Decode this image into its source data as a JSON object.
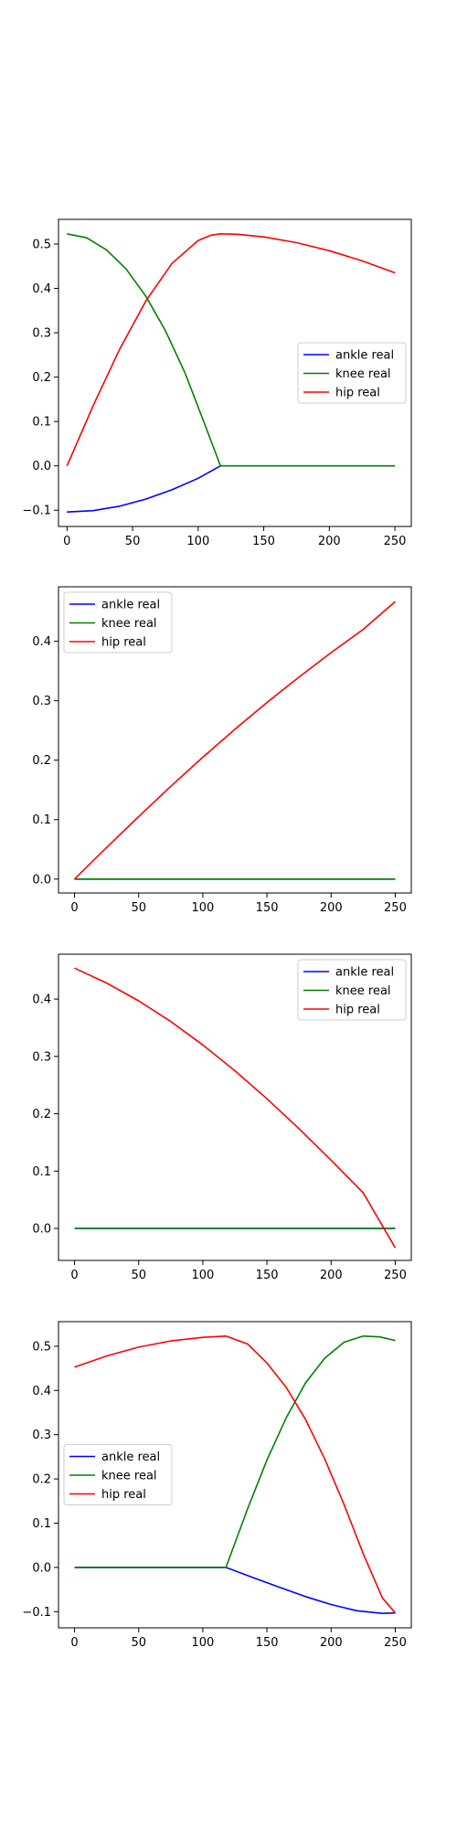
{
  "chart_data": [
    {
      "type": "line",
      "xlim": [
        -6.5,
        262.5
      ],
      "ylim": [
        -0.1366,
        0.5556
      ],
      "xticks": [
        0,
        50,
        100,
        150,
        200,
        250
      ],
      "yticks": [
        -0.1,
        0.0,
        0.1,
        0.2,
        0.3,
        0.4,
        0.5
      ],
      "ytick_labels": [
        "−0.1",
        "0.0",
        "0.1",
        "0.2",
        "0.3",
        "0.4",
        "0.5"
      ],
      "legend": "center-right",
      "series": [
        {
          "name": "ankle real",
          "color": "#0000ff",
          "x": [
            0,
            20,
            40,
            60,
            80,
            100,
            117
          ],
          "y": [
            -0.104,
            -0.101,
            -0.091,
            -0.075,
            -0.054,
            -0.028,
            0.0
          ]
        },
        {
          "name": "knee real",
          "color": "#008000",
          "x": [
            0,
            15,
            30,
            45,
            60,
            75,
            90,
            105,
            117,
            150,
            200,
            250
          ],
          "y": [
            0.523,
            0.514,
            0.487,
            0.444,
            0.383,
            0.305,
            0.209,
            0.094,
            0.0,
            0.0,
            0.0,
            0.0
          ]
        },
        {
          "name": "hip real",
          "color": "#ff0000",
          "x": [
            0,
            20,
            40,
            60,
            80,
            100,
            110,
            117,
            130,
            150,
            175,
            200,
            225,
            250
          ],
          "y": [
            0.0,
            0.136,
            0.262,
            0.371,
            0.456,
            0.508,
            0.52,
            0.523,
            0.522,
            0.516,
            0.503,
            0.485,
            0.462,
            0.435
          ]
        }
      ]
    },
    {
      "type": "line",
      "xlim": [
        -12.5,
        262.5
      ],
      "ylim": [
        -0.0234,
        0.4917
      ],
      "xticks": [
        0,
        50,
        100,
        150,
        200,
        250
      ],
      "yticks": [
        0.0,
        0.1,
        0.2,
        0.3,
        0.4
      ],
      "ytick_labels": [
        "0.0",
        "0.1",
        "0.2",
        "0.3",
        "0.4"
      ],
      "legend": "top-left",
      "series": [
        {
          "name": "ankle real",
          "color": "#0000ff",
          "x": [
            0,
            250
          ],
          "y": [
            0.0,
            0.0
          ]
        },
        {
          "name": "knee real",
          "color": "#008000",
          "x": [
            0,
            250
          ],
          "y": [
            0.0,
            0.0
          ]
        },
        {
          "name": "hip real",
          "color": "#ff0000",
          "x": [
            0,
            25,
            50,
            75,
            100,
            125,
            150,
            175,
            200,
            225,
            250
          ],
          "y": [
            0.0,
            0.053,
            0.105,
            0.156,
            0.205,
            0.252,
            0.297,
            0.34,
            0.381,
            0.42,
            0.467
          ]
        }
      ]
    },
    {
      "type": "line",
      "xlim": [
        -12.5,
        262.5
      ],
      "ylim": [
        -0.0558,
        0.4783
      ],
      "xticks": [
        0,
        50,
        100,
        150,
        200,
        250
      ],
      "yticks": [
        0.0,
        0.1,
        0.2,
        0.3,
        0.4
      ],
      "ytick_labels": [
        "0.0",
        "0.1",
        "0.2",
        "0.3",
        "0.4"
      ],
      "legend": "top-right",
      "series": [
        {
          "name": "ankle real",
          "color": "#0000ff",
          "x": [
            0,
            250
          ],
          "y": [
            0.0,
            0.0
          ]
        },
        {
          "name": "knee real",
          "color": "#008000",
          "x": [
            0,
            250
          ],
          "y": [
            0.0,
            0.0
          ]
        },
        {
          "name": "hip real",
          "color": "#ff0000",
          "x": [
            0,
            25,
            50,
            75,
            100,
            125,
            150,
            175,
            200,
            225,
            250
          ],
          "y": [
            0.454,
            0.428,
            0.397,
            0.361,
            0.32,
            0.275,
            0.226,
            0.174,
            0.119,
            0.062,
            -0.034
          ]
        }
      ]
    },
    {
      "type": "line",
      "xlim": [
        -12.5,
        262.5
      ],
      "ylim": [
        -0.1366,
        0.5556
      ],
      "xticks": [
        0,
        50,
        100,
        150,
        200,
        250
      ],
      "yticks": [
        -0.1,
        0.0,
        0.1,
        0.2,
        0.3,
        0.4,
        0.5
      ],
      "ytick_labels": [
        "−0.1",
        "0.0",
        "0.1",
        "0.2",
        "0.3",
        "0.4",
        "0.5"
      ],
      "legend": "center-left",
      "series": [
        {
          "name": "ankle real",
          "color": "#0000ff",
          "x": [
            0,
            50,
            100,
            118,
            140,
            160,
            180,
            200,
            220,
            240,
            250
          ],
          "y": [
            0.0,
            0.0,
            0.0,
            0.0,
            -0.024,
            -0.045,
            -0.066,
            -0.084,
            -0.098,
            -0.104,
            -0.103
          ]
        },
        {
          "name": "knee real",
          "color": "#008000",
          "x": [
            0,
            50,
            100,
            118,
            135,
            150,
            165,
            180,
            195,
            210,
            225,
            238,
            250
          ],
          "y": [
            0.0,
            0.0,
            0.0,
            0.0,
            0.133,
            0.243,
            0.338,
            0.417,
            0.473,
            0.509,
            0.523,
            0.521,
            0.513
          ]
        },
        {
          "name": "hip real",
          "color": "#ff0000",
          "x": [
            0,
            25,
            50,
            75,
            100,
            118,
            135,
            150,
            165,
            180,
            195,
            210,
            225,
            240,
            250
          ],
          "y": [
            0.453,
            0.478,
            0.498,
            0.512,
            0.52,
            0.523,
            0.505,
            0.462,
            0.407,
            0.335,
            0.245,
            0.143,
            0.031,
            -0.069,
            -0.103
          ]
        }
      ]
    }
  ]
}
